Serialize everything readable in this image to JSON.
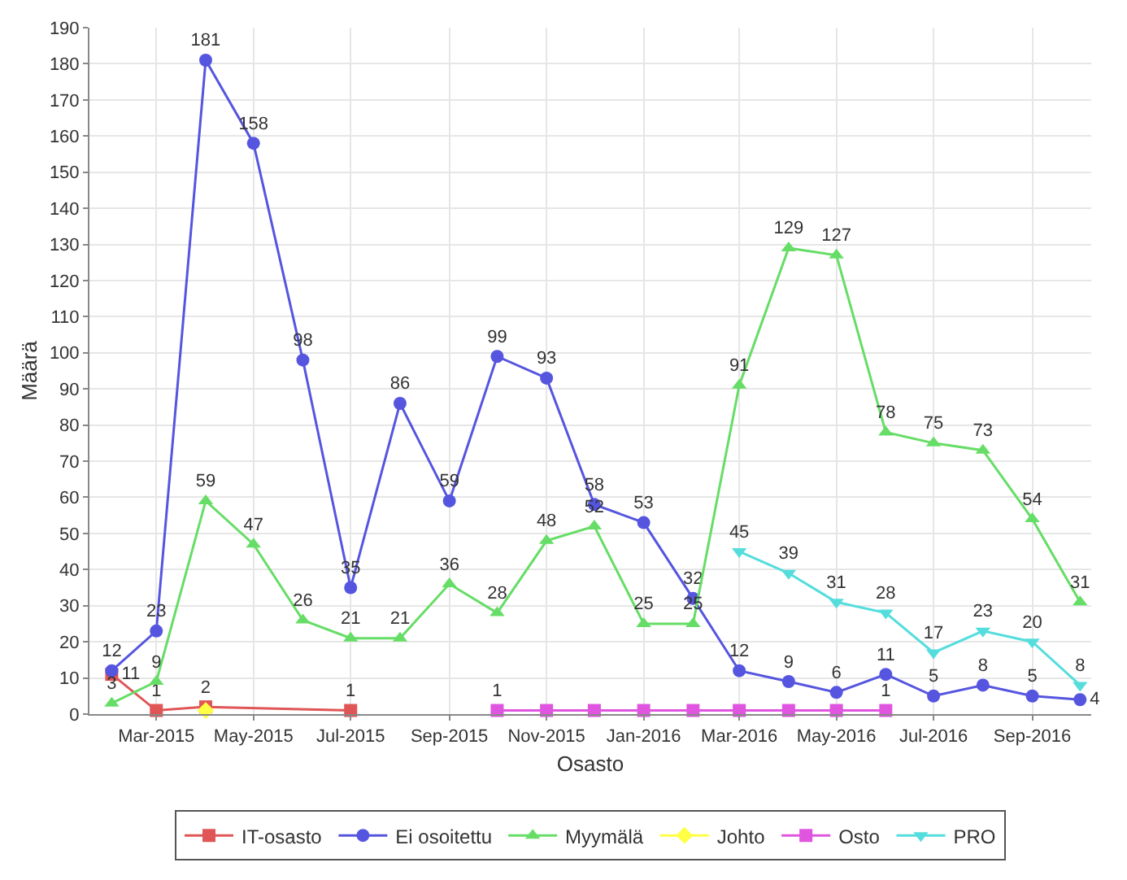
{
  "chart_data": {
    "type": "line",
    "xlabel": "Osasto",
    "ylabel": "Määrä",
    "xlim": [
      "2015-01-18",
      "2016-10-08"
    ],
    "xticks": [
      {
        "value": "2015-03",
        "label": "Mar-2015"
      },
      {
        "value": "2015-05",
        "label": "May-2015"
      },
      {
        "value": "2015-07",
        "label": "Jul-2015"
      },
      {
        "value": "2015-09",
        "label": "Sep-2015"
      },
      {
        "value": "2015-11",
        "label": "Nov-2015"
      },
      {
        "value": "2016-01",
        "label": "Jan-2016"
      },
      {
        "value": "2016-03",
        "label": "Mar-2016"
      },
      {
        "value": "2016-05",
        "label": "May-2016"
      },
      {
        "value": "2016-07",
        "label": "Jul-2016"
      },
      {
        "value": "2016-09",
        "label": "Sep-2016"
      }
    ],
    "ylim": [
      0,
      190
    ],
    "yticks": [
      0,
      10,
      20,
      30,
      40,
      50,
      60,
      70,
      80,
      90,
      100,
      110,
      120,
      130,
      140,
      150,
      160,
      170,
      180,
      190
    ],
    "grid": true,
    "legend": "bottom",
    "series": [
      {
        "name": "IT-osasto",
        "color": "#e05555",
        "marker": "square",
        "x": [
          "2015-02",
          "2015-03",
          "2015-04",
          "2015-07"
        ],
        "values": [
          11,
          1,
          2,
          1
        ],
        "value_labels": [
          "11",
          "1",
          "2",
          "1"
        ]
      },
      {
        "name": "Ei osoitettu",
        "color": "#5555e0",
        "marker": "circle",
        "x": [
          "2015-02",
          "2015-03",
          "2015-04",
          "2015-05",
          "2015-06",
          "2015-07",
          "2015-08",
          "2015-09",
          "2015-10",
          "2015-11",
          "2015-12",
          "2016-01",
          "2016-02",
          "2016-03",
          "2016-04",
          "2016-05",
          "2016-06",
          "2016-07",
          "2016-08",
          "2016-09",
          "2016-10"
        ],
        "values": [
          12,
          23,
          181,
          158,
          98,
          35,
          86,
          59,
          99,
          93,
          58,
          53,
          32,
          12,
          9,
          6,
          11,
          5,
          8,
          5,
          4
        ],
        "value_labels": [
          "12",
          "23",
          "181",
          "158",
          "98",
          "35",
          "86",
          "59",
          "99",
          "93",
          "58",
          "53",
          "32",
          "12",
          "9",
          "6",
          "11",
          "5",
          "8",
          "5",
          "4"
        ]
      },
      {
        "name": "Myymälä",
        "color": "#66dd66",
        "marker": "triangle",
        "x": [
          "2015-02",
          "2015-03",
          "2015-04",
          "2015-05",
          "2015-06",
          "2015-07",
          "2015-08",
          "2015-09",
          "2015-10",
          "2015-11",
          "2015-12",
          "2016-01",
          "2016-02",
          "2016-03",
          "2016-04",
          "2016-05",
          "2016-06",
          "2016-07",
          "2016-08",
          "2016-09",
          "2016-10"
        ],
        "values": [
          3,
          9,
          59,
          47,
          26,
          21,
          21,
          36,
          28,
          48,
          52,
          25,
          25,
          91,
          129,
          127,
          78,
          75,
          73,
          54,
          31
        ],
        "value_labels": [
          "3",
          "9",
          "59",
          "47",
          "26",
          "21",
          "21",
          "36",
          "28",
          "48",
          "52",
          "25",
          "25",
          "91",
          "129",
          "127",
          "78",
          "75",
          "73",
          "54",
          "31"
        ]
      },
      {
        "name": "Johto",
        "color": "#ffff44",
        "marker": "diamond",
        "x": [
          "2015-04"
        ],
        "values": [
          1
        ]
      },
      {
        "name": "Osto",
        "color": "#e055e0",
        "marker": "square",
        "x": [
          "2015-10",
          "2015-11",
          "2015-12",
          "2016-01",
          "2016-02",
          "2016-03",
          "2016-04",
          "2016-05",
          "2016-06"
        ],
        "values": [
          1,
          1,
          1,
          1,
          1,
          1,
          1,
          1,
          1
        ],
        "value_labels": [
          "1",
          null,
          null,
          null,
          null,
          null,
          null,
          null,
          "1"
        ]
      },
      {
        "name": "PRO",
        "color": "#55dddd",
        "marker": "triangle-down",
        "x": [
          "2016-03",
          "2016-04",
          "2016-05",
          "2016-06",
          "2016-07",
          "2016-08",
          "2016-09",
          "2016-10"
        ],
        "values": [
          45,
          39,
          31,
          28,
          17,
          23,
          20,
          8
        ],
        "value_labels": [
          "45",
          "39",
          "31",
          "28",
          "17",
          "23",
          "20",
          "8"
        ]
      }
    ]
  }
}
